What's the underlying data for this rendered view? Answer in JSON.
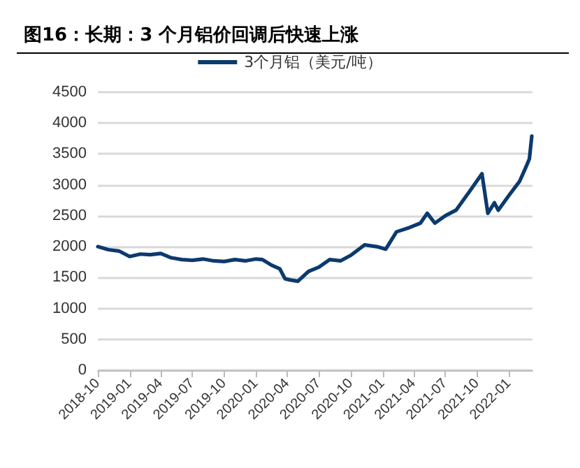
{
  "chart_data": {
    "type": "line",
    "title": "图16：长期：3 个月铝价回调后快速上涨",
    "x": [
      "2018-10-01",
      "2018-11-01",
      "2018-12-01",
      "2019-01-01",
      "2019-02-01",
      "2019-03-01",
      "2019-04-01",
      "2019-05-01",
      "2019-06-01",
      "2019-07-01",
      "2019-08-01",
      "2019-09-01",
      "2019-10-01",
      "2019-11-01",
      "2019-12-01",
      "2020-01-01",
      "2020-01-20",
      "2020-02-15",
      "2020-03-10",
      "2020-03-25",
      "2020-04-10",
      "2020-05-01",
      "2020-06-01",
      "2020-07-01",
      "2020-08-01",
      "2020-09-01",
      "2020-10-01",
      "2020-11-10",
      "2020-12-15",
      "2021-01-10",
      "2021-02-10",
      "2021-03-20",
      "2021-04-20",
      "2021-05-10",
      "2021-06-01",
      "2021-07-01",
      "2021-08-01",
      "2021-09-10",
      "2021-10-15",
      "2021-11-01",
      "2021-11-20",
      "2021-12-01",
      "2022-01-01",
      "2022-02-01",
      "2022-02-20",
      "2022-03-01",
      "2022-03-08"
    ],
    "series": [
      {
        "name": "3个月铝（美元/吨）",
        "color": "#0b3a6e",
        "values": [
          2000,
          1950,
          1930,
          1840,
          1880,
          1870,
          1890,
          1820,
          1790,
          1780,
          1800,
          1770,
          1760,
          1790,
          1770,
          1800,
          1790,
          1700,
          1640,
          1480,
          1460,
          1440,
          1600,
          1670,
          1790,
          1770,
          1860,
          2030,
          2000,
          1960,
          2240,
          2310,
          2380,
          2540,
          2380,
          2500,
          2590,
          2900,
          3180,
          2540,
          2710,
          2590,
          2830,
          3060,
          3300,
          3420,
          3790
        ]
      }
    ],
    "xlim": [
      "2018-10-01",
      "2022-03-10"
    ],
    "xticks": [
      {
        "value": "2018-10-01",
        "label": "2018-10"
      },
      {
        "value": "2019-01-01",
        "label": "2019-01"
      },
      {
        "value": "2019-04-01",
        "label": "2019-04"
      },
      {
        "value": "2019-07-01",
        "label": "2019-07"
      },
      {
        "value": "2019-10-01",
        "label": "2019-10"
      },
      {
        "value": "2020-01-01",
        "label": "2020-01"
      },
      {
        "value": "2020-04-01",
        "label": "2020-04"
      },
      {
        "value": "2020-07-01",
        "label": "2020-07"
      },
      {
        "value": "2020-10-01",
        "label": "2020-10"
      },
      {
        "value": "2021-01-01",
        "label": "2021-01"
      },
      {
        "value": "2021-04-01",
        "label": "2021-04"
      },
      {
        "value": "2021-07-01",
        "label": "2021-07"
      },
      {
        "value": "2021-10-01",
        "label": "2021-10"
      },
      {
        "value": "2022-01-01",
        "label": "2022-01"
      }
    ],
    "ylim": [
      0,
      4500
    ],
    "yticks": [
      0,
      500,
      1000,
      1500,
      2000,
      2500,
      3000,
      3500,
      4000,
      4500
    ],
    "grid": "y",
    "legend": "top",
    "marker": "none",
    "line_style": "solid"
  }
}
